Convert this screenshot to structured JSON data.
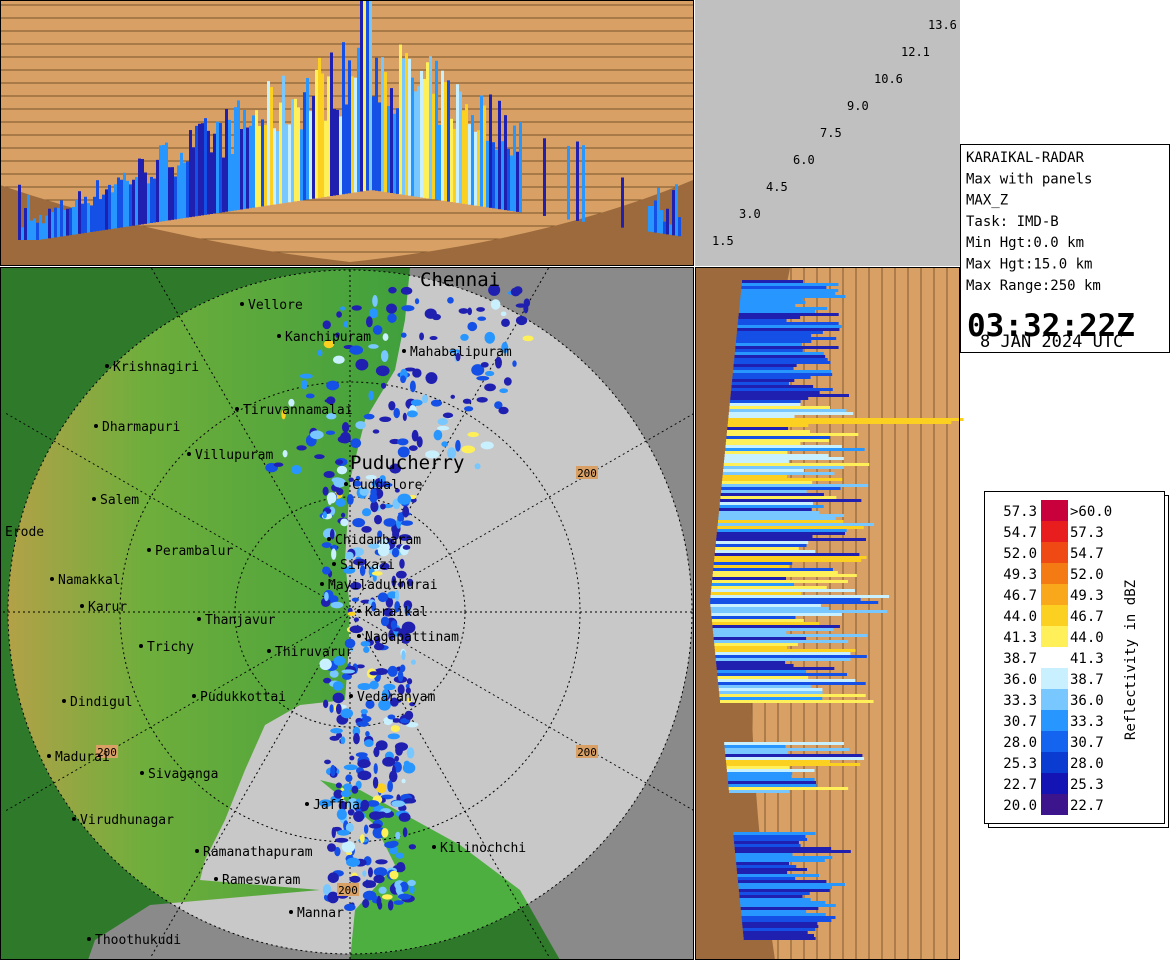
{
  "height_labels": [
    "1.5",
    "3.0",
    "4.5",
    "6.0",
    "7.5",
    "9.0",
    "10.6",
    "12.1",
    "13.6"
  ],
  "info": {
    "lines": [
      "KARAIKAL-RADAR",
      "Max with panels",
      "MAX_Z",
      "Task: IMD-B",
      "Min Hgt:0.0 km",
      "Max Hgt:15.0 km",
      "Max Range:250 km"
    ],
    "time": "03:32:22Z",
    "date": "8 JAN 2024 UTC"
  },
  "legend": {
    "title": "Reflectivity in dBZ",
    "rows": [
      {
        "low": "57.3",
        "high": ">60.0",
        "color": "#c8003c"
      },
      {
        "low": "54.7",
        "high": "57.3",
        "color": "#e81e1e"
      },
      {
        "low": "52.0",
        "high": "54.7",
        "color": "#f04a14"
      },
      {
        "low": "49.3",
        "high": "52.0",
        "color": "#f47a14"
      },
      {
        "low": "46.7",
        "high": "49.3",
        "color": "#f8a81a"
      },
      {
        "low": "44.0",
        "high": "46.7",
        "color": "#fcd020"
      },
      {
        "low": "41.3",
        "high": "44.0",
        "color": "#fff05a"
      },
      {
        "low": "38.7",
        "high": "41.3",
        "color": "#ffffff"
      },
      {
        "low": "36.0",
        "high": "38.7",
        "color": "#c8f0ff"
      },
      {
        "low": "33.3",
        "high": "36.0",
        "color": "#78c8ff"
      },
      {
        "low": "30.7",
        "high": "33.3",
        "color": "#2896ff"
      },
      {
        "low": "28.0",
        "high": "30.7",
        "color": "#1464f0"
      },
      {
        "low": "25.3",
        "high": "28.0",
        "color": "#0a3cd2"
      },
      {
        "low": "22.7",
        "high": "25.3",
        "color": "#1414b4"
      },
      {
        "low": "20.0",
        "high": "22.7",
        "color": "#3c148c"
      }
    ]
  },
  "map": {
    "major_cities": [
      "Chennai",
      "Puducherry"
    ],
    "cities": [
      "Mahabalipuram",
      "Cuddalore",
      "Chidambaram",
      "Sirkazi",
      "Mayiladuthurai",
      "Karaikal",
      "Nagapattinam",
      "Vedaranyam",
      "Jaffna",
      "Kilinochchi",
      "Mannar",
      "Rameswaram",
      "Ramanathapuram",
      "Thoothukudi",
      "Virudhunagar",
      "Sivaganga",
      "Madurai",
      "Dindigul",
      "Pudukkottai",
      "Thiruvarur",
      "Thanjavur",
      "Trichy",
      "Karur",
      "Namakkal",
      "Erode",
      "Salem",
      "Perambalur",
      "Villupuram",
      "Tiruvannamalai",
      "Kanchipuram",
      "Vellore",
      "Krishnagiri",
      "Dharmapuri"
    ],
    "range_labels": [
      "200",
      "200",
      "200",
      "200"
    ]
  }
}
